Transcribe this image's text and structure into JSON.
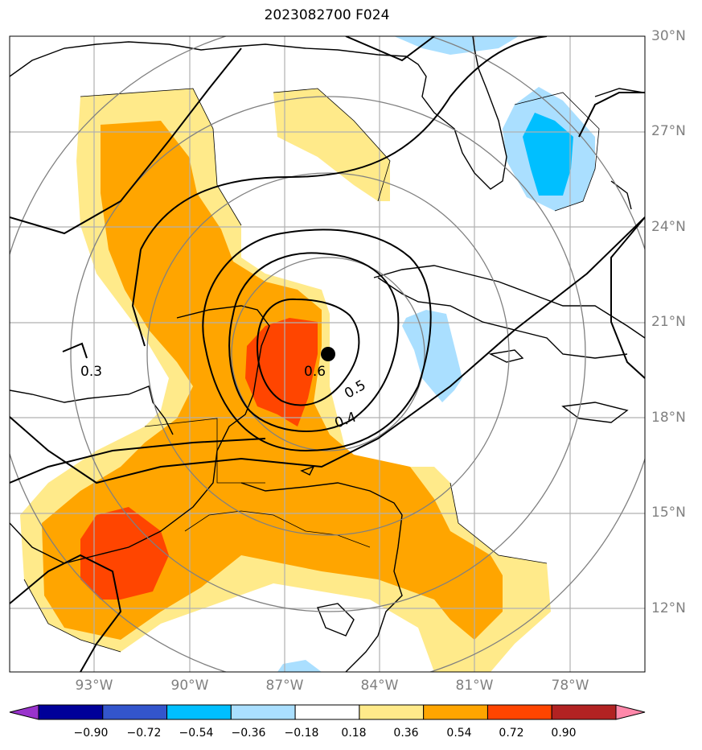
{
  "title": "2023082700 F024",
  "longitude_labels": [
    "93°W",
    "90°W",
    "87°W",
    "84°W",
    "81°W",
    "78°W"
  ],
  "latitude_labels": [
    "30°N",
    "27°N",
    "24°N",
    "21°N",
    "18°N",
    "15°N",
    "12°N"
  ],
  "contour_labels": [
    "0.3",
    "0.6",
    "0.5",
    "0.4"
  ],
  "colorbar": {
    "ticks": [
      "−0.90",
      "−0.72",
      "−0.54",
      "−0.36",
      "−0.18",
      "0.18",
      "0.36",
      "0.54",
      "0.72",
      "0.90"
    ],
    "colors": [
      "#9933cc",
      "#000099",
      "#3355cc",
      "#00bfff",
      "#aadfff",
      "#ffffff",
      "#ffea8a",
      "#ffa500",
      "#ff4500",
      "#b22222",
      "#ff88aa"
    ]
  },
  "colors": {
    "fill_light_yellow": "#ffea8a",
    "fill_orange": "#ffa500",
    "fill_red_orange": "#ff4500",
    "fill_light_blue": "#aadfff",
    "fill_blue": "#00bfff",
    "grid": "#aaaaaa",
    "range_rings": "#808080",
    "contours": "#000000",
    "storm_center": "#000000"
  }
}
